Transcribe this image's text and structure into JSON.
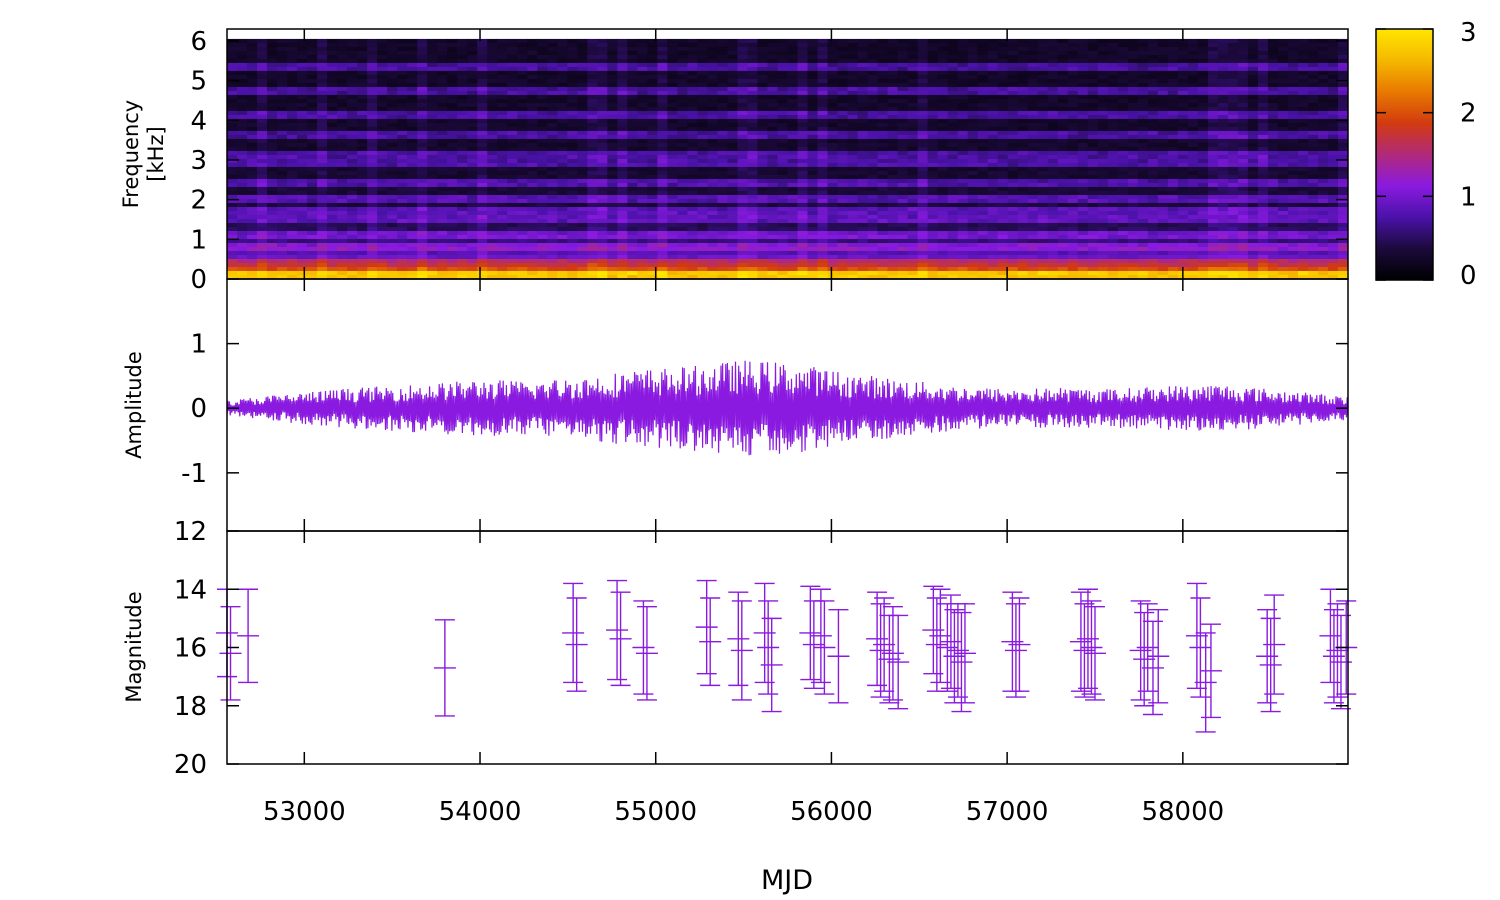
{
  "colors": {
    "series": "#8a1ae0",
    "frame": "#000000",
    "background": "#ffffff",
    "colormap": [
      "#000000",
      "#1c0a3c",
      "#4a12a8",
      "#8a1ae0",
      "#b02a7a",
      "#d23a10",
      "#e87a00",
      "#f5b800",
      "#ffe600"
    ]
  },
  "xaxis": {
    "label": "MJD",
    "range": [
      52560,
      58940
    ],
    "ticks": [
      53000,
      54000,
      55000,
      56000,
      57000,
      58000
    ],
    "tick_labels": [
      "53000",
      "54000",
      "55000",
      "56000",
      "57000",
      "58000"
    ]
  },
  "panels": {
    "spectrogram": {
      "ylabel_line1": "Frequency",
      "ylabel_line2": "[kHz]"
    },
    "amplitude": {
      "ylabel": "Amplitude"
    },
    "magnitude": {
      "ylabel": "Magnitude"
    }
  },
  "colorbar": {
    "range": [
      0,
      3
    ],
    "ticks": [
      0,
      1,
      2,
      3
    ],
    "tick_labels": [
      "0",
      "1",
      "2",
      "3"
    ]
  },
  "chart_data": [
    {
      "type": "heatmap",
      "panel": "spectrogram",
      "xlabel": "",
      "ylabel": "Frequency [kHz]",
      "xlim": [
        52560,
        58940
      ],
      "ylim": [
        0,
        6.3
      ],
      "yticks": [
        0,
        1,
        2,
        3,
        4,
        5,
        6
      ],
      "ytick_labels": [
        "0",
        "1",
        "2",
        "3",
        "4",
        "5",
        "6"
      ],
      "zlim": [
        0,
        3
      ],
      "frequency_max": 6.05,
      "ridges_khz": [
        0.1,
        0.2,
        0.45,
        0.8,
        1.1,
        1.55,
        1.7,
        2.05,
        2.4,
        2.9,
        3.15,
        3.6,
        4.1,
        4.75,
        5.3
      ],
      "background_level": 0.3,
      "low_frequency_level": 1.8
    },
    {
      "type": "line",
      "panel": "amplitude",
      "xlabel": "",
      "ylabel": "Amplitude",
      "xlim": [
        52560,
        58940
      ],
      "ylim": [
        -1.9,
        2.0
      ],
      "yticks": [
        -1,
        0,
        1
      ],
      "ytick_labels": [
        "-1",
        "0",
        "1"
      ],
      "envelope": {
        "x": [
          52560,
          52800,
          53000,
          53200,
          53500,
          53800,
          54000,
          54300,
          54600,
          54900,
          55200,
          55500,
          55800,
          56100,
          56400,
          56700,
          57000,
          57300,
          57600,
          57900,
          58200,
          58500,
          58800,
          58940
        ],
        "y": [
          0.12,
          0.2,
          0.25,
          0.3,
          0.35,
          0.4,
          0.45,
          0.42,
          0.5,
          0.6,
          0.65,
          0.75,
          0.7,
          0.55,
          0.45,
          0.35,
          0.3,
          0.32,
          0.3,
          0.35,
          0.38,
          0.3,
          0.22,
          0.18
        ]
      }
    },
    {
      "type": "scatter",
      "panel": "magnitude",
      "xlabel": "MJD",
      "ylabel": "Magnitude",
      "xlim": [
        52560,
        58940
      ],
      "ylim": [
        20,
        12
      ],
      "yticks": [
        12,
        14,
        16,
        18,
        20
      ],
      "ytick_labels": [
        "12",
        "14",
        "16",
        "18",
        "20"
      ],
      "x": [
        52560,
        52580,
        52680,
        53800,
        54530,
        54550,
        54780,
        54800,
        54930,
        54950,
        55290,
        55310,
        55470,
        55490,
        55620,
        55640,
        55660,
        55880,
        55900,
        55940,
        55960,
        56040,
        56260,
        56280,
        56300,
        56330,
        56350,
        56380,
        56580,
        56600,
        56620,
        56660,
        56680,
        56700,
        56720,
        56740,
        56760,
        57030,
        57050,
        57070,
        57420,
        57440,
        57460,
        57480,
        57500,
        57760,
        57780,
        57800,
        57830,
        57860,
        58080,
        58100,
        58130,
        58160,
        58480,
        58500,
        58520,
        58840,
        58860,
        58880,
        58900,
        58930
      ],
      "y": [
        15.5,
        16.2,
        15.6,
        16.7,
        15.5,
        15.9,
        15.4,
        15.7,
        16.0,
        16.2,
        15.3,
        15.8,
        15.7,
        16.1,
        15.5,
        16.0,
        16.6,
        15.5,
        15.9,
        15.6,
        16.0,
        16.3,
        15.7,
        16.1,
        15.9,
        16.4,
        16.2,
        16.5,
        15.4,
        15.9,
        15.6,
        16.0,
        15.8,
        16.3,
        16.1,
        16.5,
        16.2,
        15.8,
        16.1,
        15.9,
        15.8,
        16.1,
        15.7,
        16.0,
        16.2,
        16.1,
        16.4,
        16.0,
        16.7,
        16.3,
        15.6,
        16.0,
        17.2,
        16.8,
        16.3,
        16.6,
        15.9,
        15.6,
        16.3,
        16.1,
        16.5,
        16.0
      ],
      "yerr": [
        1.5,
        1.6,
        1.6,
        1.65,
        1.7,
        1.6,
        1.7,
        1.6,
        1.6,
        1.6,
        1.6,
        1.5,
        1.6,
        1.7,
        1.7,
        1.6,
        1.6,
        1.6,
        1.5,
        1.6,
        1.6,
        1.6,
        1.6,
        1.6,
        1.6,
        1.5,
        1.6,
        1.6,
        1.5,
        1.6,
        1.6,
        1.5,
        1.6,
        1.6,
        1.6,
        1.7,
        1.7,
        1.7,
        1.6,
        1.6,
        1.7,
        1.6,
        1.7,
        1.6,
        1.6,
        1.7,
        1.6,
        1.5,
        1.6,
        1.6,
        1.8,
        1.7,
        1.7,
        1.6,
        1.6,
        1.6,
        1.7,
        1.6,
        1.6,
        1.6,
        1.6,
        1.6
      ]
    }
  ]
}
